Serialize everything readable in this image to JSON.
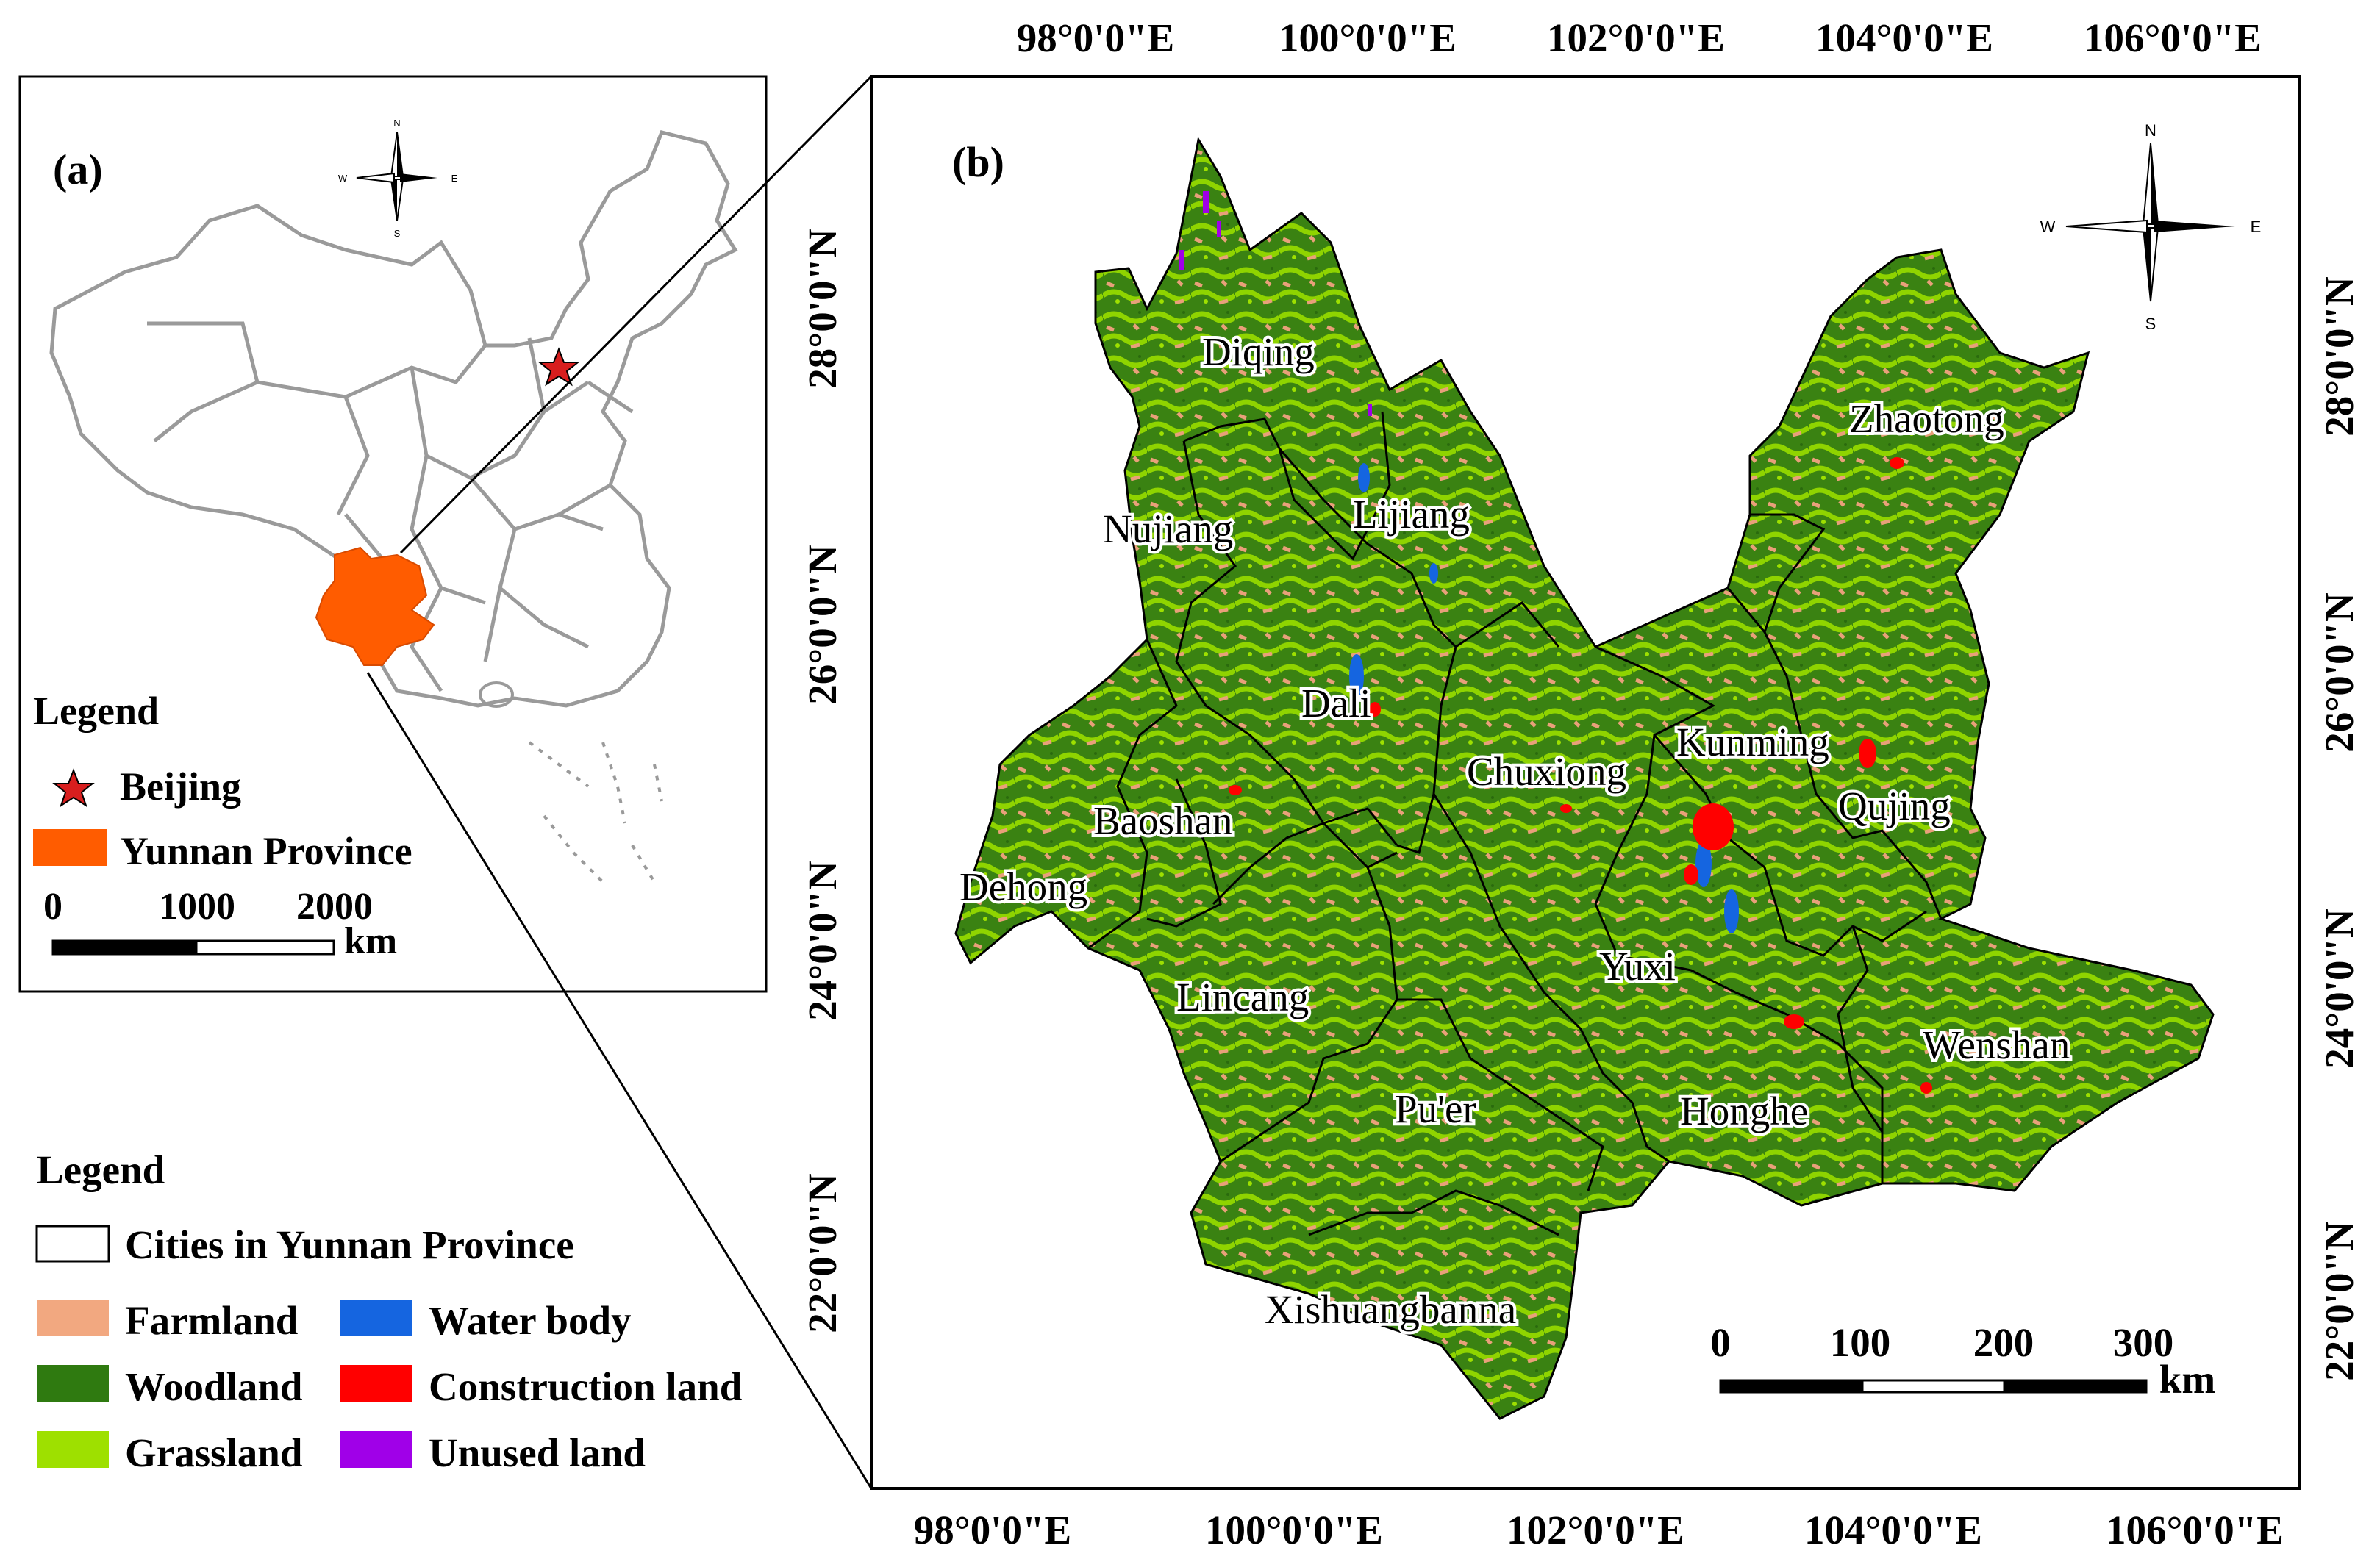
{
  "panel_a": {
    "label": "(a)",
    "compass": {
      "n": "N",
      "s": "S",
      "e": "E",
      "w": "W"
    },
    "legend_title": "Legend",
    "legend_items": [
      {
        "label": "Beijing",
        "symbol": "star",
        "color": "#d81e1e"
      },
      {
        "label": "Yunnan Province",
        "symbol": "rect",
        "color": "#ff5c00"
      }
    ],
    "scale": {
      "ticks": [
        "0",
        "1000",
        "2000"
      ],
      "unit": "km"
    }
  },
  "panel_b": {
    "label": "(b)",
    "compass": {
      "n": "N",
      "s": "S",
      "e": "E",
      "w": "W"
    },
    "top_lon_labels": [
      "98°0'0\"E",
      "100°0'0\"E",
      "102°0'0\"E",
      "104°0'0\"E",
      "106°0'0\"E"
    ],
    "bottom_lon_labels": [
      "98°0'0\"E",
      "100°0'0\"E",
      "102°0'0\"E",
      "104°0'0\"E",
      "106°0'0\"E"
    ],
    "left_lat_labels": [
      "28°0'0\"N",
      "26°0'0\"N",
      "24°0'0\"N",
      "22°0'0\"N"
    ],
    "right_lat_labels": [
      "28°0'0\"N",
      "26°0'0\"N",
      "24°0'0\"N",
      "22°0'0\"N"
    ],
    "cities": [
      "Diqing",
      "Zhaotong",
      "Nujiang",
      "Lijiang",
      "Dali",
      "Chuxiong",
      "Kunming",
      "Qujing",
      "Baoshan",
      "Dehong",
      "Yuxi",
      "Lincang",
      "Wenshan",
      "Pu'er",
      "Honghe",
      "Xishuangbanna"
    ],
    "scale": {
      "ticks": [
        "0",
        "100",
        "200",
        "300"
      ],
      "unit": "km"
    }
  },
  "legend_b": {
    "title": "Legend",
    "boundary_label": "Cities in Yunnan Province",
    "classes": [
      {
        "label": "Farmland",
        "color": "#f2a880"
      },
      {
        "label": "Water body",
        "color": "#1565e0"
      },
      {
        "label": "Woodland",
        "color": "#2f7a10"
      },
      {
        "label": "Construction land",
        "color": "#ff0000"
      },
      {
        "label": "Grassland",
        "color": "#9ee000"
      },
      {
        "label": "Unused land",
        "color": "#a000e8"
      }
    ]
  }
}
